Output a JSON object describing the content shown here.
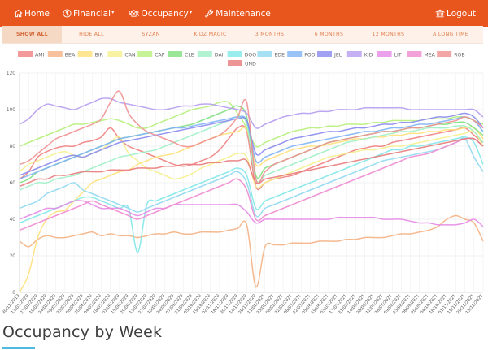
{
  "nav": {
    "home": "Home",
    "financial": "Financial",
    "occupancy": "Occupancy",
    "maintenance": "Maintenance",
    "logout": "Logout",
    "caret": "▾"
  },
  "filters": [
    {
      "label": "SHOW ALL",
      "active": true
    },
    {
      "label": "HIDE ALL",
      "active": false
    },
    {
      "label": "SYZAN",
      "active": false
    },
    {
      "label": "KIDZ MAGIC",
      "active": false
    },
    {
      "label": "3 MONTHS",
      "active": false
    },
    {
      "label": "6 MONTHS",
      "active": false
    },
    {
      "label": "12 MONTHS",
      "active": false
    },
    {
      "label": "A LONG TIME",
      "active": false
    }
  ],
  "section_title": "Occupancy by Week",
  "colors": {
    "nav_bg": "#e8561e",
    "filter_bg": "#fdf1e9",
    "accent_underline": "#4fb9df"
  },
  "chart_data": {
    "type": "line",
    "ylim": [
      0,
      120
    ],
    "yticks": [
      0,
      20,
      40,
      60,
      80,
      100,
      120
    ],
    "legend_position": "top",
    "grid": true,
    "x": [
      "30/12/2019",
      "13/01/2020",
      "27/01/2020",
      "10/02/2020",
      "24/02/2020",
      "09/03/2020",
      "23/03/2020",
      "06/04/2020",
      "20/04/2020",
      "04/05/2020",
      "18/05/2020",
      "01/06/2020",
      "15/06/2020",
      "29/06/2020",
      "13/07/2020",
      "27/07/2020",
      "10/08/2020",
      "24/08/2020",
      "07/09/2020",
      "21/09/2020",
      "05/10/2020",
      "19/10/2020",
      "02/11/2020",
      "16/11/2020",
      "30/11/2020",
      "14/12/2020",
      "28/12/2020",
      "11/01/2021",
      "25/01/2021",
      "08/02/2021",
      "22/02/2021",
      "08/03/2021",
      "22/03/2021",
      "05/04/2021",
      "19/04/2021",
      "03/05/2021",
      "17/05/2021",
      "31/05/2021",
      "14/06/2021",
      "28/06/2021",
      "12/07/2021",
      "26/07/2021",
      "09/08/2021",
      "23/08/2021",
      "06/09/2021",
      "20/09/2021",
      "04/10/2021",
      "18/10/2021",
      "01/11/2021",
      "15/11/2021",
      "29/11/2021",
      "13/12/2021"
    ],
    "series": [
      {
        "name": "AMI",
        "color": "#f08080",
        "values": [
          62,
          66,
          74,
          77,
          79,
          80,
          80,
          82,
          83,
          85,
          90,
          84,
          80,
          78,
          76,
          74,
          72,
          70,
          69,
          70,
          72,
          74,
          78,
          84,
          90,
          88,
          58,
          60,
          62,
          63,
          64,
          66,
          68,
          70,
          72,
          74,
          76,
          78,
          79,
          80,
          80,
          82,
          83,
          84,
          85,
          86,
          87,
          88,
          89,
          90,
          86,
          82
        ]
      },
      {
        "name": "BEA",
        "color": "#f4b183",
        "values": [
          28,
          25,
          29,
          31,
          30,
          30,
          31,
          32,
          33,
          31,
          32,
          31,
          31,
          30,
          31,
          32,
          32,
          33,
          32,
          32,
          33,
          33,
          33,
          34,
          35,
          37,
          3,
          25,
          26,
          26,
          27,
          27,
          27,
          28,
          28,
          28,
          29,
          29,
          30,
          30,
          30,
          31,
          32,
          32,
          33,
          34,
          36,
          40,
          42,
          40,
          38,
          28
        ]
      },
      {
        "name": "BIR",
        "color": "#ffe07a",
        "values": [
          0,
          10,
          30,
          40,
          44,
          45,
          50,
          55,
          60,
          62,
          64,
          66,
          67,
          70,
          72,
          74,
          75,
          76,
          78,
          80,
          82,
          84,
          86,
          87,
          88,
          89,
          70,
          72,
          74,
          76,
          78,
          79,
          80,
          80,
          81,
          82,
          83,
          84,
          84,
          85,
          85,
          86,
          86,
          87,
          87,
          88,
          88,
          89,
          89,
          90,
          90,
          84
        ]
      },
      {
        "name": "CAN",
        "color": "#f5f08c",
        "values": [
          66,
          70,
          72,
          74,
          76,
          77,
          75,
          74,
          76,
          78,
          82,
          85,
          76,
          72,
          68,
          66,
          64,
          62,
          63,
          65,
          68,
          70,
          72,
          74,
          76,
          74,
          58,
          60,
          62,
          64,
          66,
          68,
          70,
          72,
          74,
          75,
          76,
          77,
          78,
          78,
          79,
          80,
          80,
          81,
          82,
          83,
          84,
          85,
          86,
          87,
          88,
          80
        ]
      },
      {
        "name": "CAP",
        "color": "#b6f07a",
        "values": [
          80,
          82,
          84,
          86,
          88,
          90,
          92,
          92,
          93,
          94,
          95,
          94,
          92,
          90,
          90,
          92,
          94,
          96,
          98,
          100,
          101,
          102,
          104,
          104,
          98,
          90,
          80,
          82,
          84,
          86,
          88,
          89,
          90,
          90,
          91,
          91,
          92,
          92,
          92,
          93,
          93,
          94,
          94,
          94,
          94,
          95,
          95,
          95,
          96,
          96,
          94,
          92
        ]
      },
      {
        "name": "CLE",
        "color": "#7fe07f",
        "values": [
          60,
          62,
          66,
          68,
          70,
          72,
          74,
          76,
          78,
          80,
          82,
          84,
          85,
          86,
          87,
          88,
          89,
          90,
          91,
          92,
          94,
          96,
          98,
          100,
          102,
          96,
          64,
          68,
          70,
          72,
          74,
          76,
          78,
          80,
          82,
          83,
          84,
          85,
          86,
          87,
          88,
          88,
          89,
          90,
          90,
          91,
          92,
          92,
          93,
          93,
          90,
          86
        ]
      },
      {
        "name": "DAI",
        "color": "#9ef0c6",
        "values": [
          56,
          58,
          60,
          60,
          62,
          63,
          64,
          66,
          68,
          70,
          72,
          74,
          75,
          76,
          77,
          78,
          80,
          82,
          84,
          86,
          88,
          90,
          92,
          94,
          96,
          92,
          62,
          64,
          66,
          68,
          70,
          72,
          74,
          76,
          78,
          80,
          82,
          83,
          84,
          85,
          86,
          87,
          88,
          88,
          89,
          90,
          90,
          90,
          91,
          91,
          88,
          82
        ]
      },
      {
        "name": "DOO",
        "color": "#7fe8e8",
        "values": [
          38,
          40,
          42,
          44,
          46,
          48,
          50,
          52,
          52,
          50,
          48,
          46,
          46,
          22,
          48,
          50,
          52,
          54,
          56,
          58,
          60,
          62,
          64,
          66,
          68,
          64,
          46,
          50,
          52,
          54,
          56,
          58,
          60,
          62,
          64,
          66,
          68,
          70,
          72,
          74,
          76,
          78,
          78,
          80,
          80,
          81,
          82,
          83,
          84,
          85,
          82,
          70
        ]
      },
      {
        "name": "EDE",
        "color": "#8fd9f0",
        "values": [
          46,
          48,
          50,
          54,
          56,
          58,
          60,
          56,
          54,
          52,
          50,
          48,
          46,
          44,
          46,
          48,
          50,
          52,
          54,
          56,
          58,
          60,
          62,
          64,
          66,
          60,
          42,
          46,
          48,
          50,
          52,
          54,
          56,
          58,
          60,
          62,
          64,
          66,
          68,
          70,
          72,
          73,
          74,
          75,
          76,
          77,
          78,
          80,
          82,
          84,
          74,
          66
        ]
      },
      {
        "name": "FOO",
        "color": "#7fb3f5",
        "values": [
          62,
          64,
          66,
          68,
          70,
          72,
          74,
          76,
          78,
          80,
          82,
          84,
          85,
          86,
          87,
          88,
          89,
          90,
          90,
          91,
          92,
          93,
          94,
          95,
          96,
          94,
          72,
          74,
          76,
          78,
          80,
          81,
          82,
          83,
          84,
          85,
          86,
          87,
          88,
          88,
          89,
          90,
          90,
          91,
          92,
          92,
          93,
          94,
          95,
          96,
          94,
          88
        ]
      },
      {
        "name": "JEL",
        "color": "#8a8af0",
        "values": [
          64,
          66,
          68,
          70,
          72,
          74,
          75,
          74,
          76,
          78,
          80,
          82,
          83,
          84,
          85,
          86,
          87,
          88,
          89,
          90,
          91,
          92,
          93,
          94,
          95,
          94,
          76,
          78,
          80,
          82,
          84,
          85,
          86,
          87,
          88,
          88,
          89,
          90,
          90,
          91,
          92,
          92,
          93,
          93,
          94,
          95,
          96,
          96,
          97,
          98,
          96,
          90
        ]
      },
      {
        "name": "KID",
        "color": "#b69cf0",
        "values": [
          92,
          95,
          100,
          103,
          102,
          101,
          100,
          102,
          104,
          106,
          106,
          104,
          103,
          102,
          101,
          100,
          100,
          101,
          102,
          102,
          103,
          103,
          102,
          101,
          100,
          98,
          90,
          92,
          94,
          96,
          97,
          98,
          98,
          99,
          99,
          100,
          100,
          100,
          101,
          101,
          101,
          101,
          101,
          100,
          100,
          100,
          100,
          100,
          100,
          100,
          100,
          96
        ]
      },
      {
        "name": "LIT",
        "color": "#e68ae6",
        "values": [
          40,
          42,
          44,
          46,
          46,
          48,
          50,
          50,
          48,
          46,
          46,
          46,
          44,
          42,
          44,
          46,
          46,
          48,
          48,
          48,
          48,
          48,
          48,
          48,
          48,
          44,
          38,
          40,
          40,
          40,
          40,
          40,
          40,
          40,
          40,
          41,
          41,
          41,
          41,
          41,
          40,
          40,
          40,
          39,
          38,
          38,
          37,
          37,
          37,
          38,
          40,
          36
        ]
      },
      {
        "name": "MEA",
        "color": "#f08ad0",
        "values": [
          34,
          36,
          38,
          40,
          42,
          44,
          46,
          48,
          50,
          48,
          46,
          44,
          42,
          40,
          42,
          44,
          46,
          48,
          50,
          52,
          54,
          56,
          58,
          60,
          62,
          56,
          40,
          42,
          44,
          46,
          48,
          50,
          52,
          54,
          56,
          58,
          60,
          62,
          64,
          66,
          68,
          70,
          72,
          74,
          75,
          76,
          78,
          80,
          82,
          84,
          84,
          80
        ]
      },
      {
        "name": "ROB",
        "color": "#f09090",
        "values": [
          70,
          72,
          76,
          80,
          84,
          86,
          88,
          90,
          92,
          95,
          104,
          110,
          98,
          92,
          88,
          86,
          84,
          82,
          80,
          80,
          82,
          84,
          86,
          90,
          96,
          104,
          62,
          66,
          70,
          72,
          74,
          76,
          78,
          80,
          82,
          83,
          84,
          85,
          86,
          87,
          88,
          88,
          89,
          90,
          90,
          91,
          92,
          93,
          94,
          96,
          94,
          90
        ]
      },
      {
        "name": "UND",
        "color": "#e87a7a",
        "values": [
          58,
          60,
          62,
          62,
          64,
          64,
          65,
          66,
          66,
          66,
          67,
          67,
          67,
          68,
          68,
          68,
          69,
          69,
          70,
          70,
          70,
          71,
          71,
          72,
          72,
          72,
          60,
          62,
          63,
          64,
          65,
          66,
          67,
          68,
          69,
          70,
          71,
          72,
          73,
          74,
          75,
          76,
          77,
          78,
          79,
          80,
          81,
          82,
          83,
          84,
          84,
          80
        ]
      }
    ]
  }
}
